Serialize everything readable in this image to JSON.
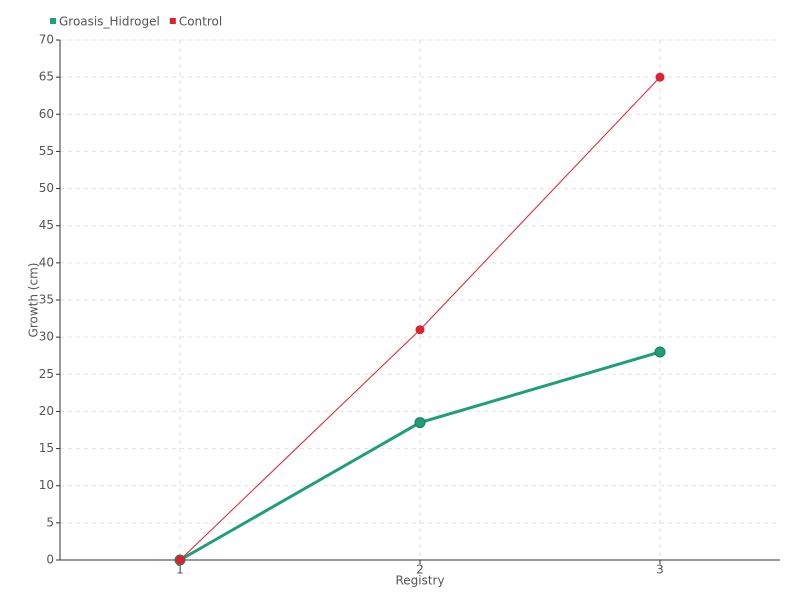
{
  "chart_data": {
    "type": "line",
    "x": [
      1,
      2,
      3
    ],
    "series": [
      {
        "name": "Groasis_Hidrogel",
        "color": "#1f9e7a",
        "values": [
          0,
          18.5,
          28
        ]
      },
      {
        "name": "Control",
        "color": "#e0202e",
        "values": [
          0,
          31,
          65
        ]
      }
    ],
    "xlabel": "Registry",
    "ylabel": "Growth (cm)",
    "xlim": [
      0.5,
      3.5
    ],
    "xticks": [
      1,
      2,
      3
    ],
    "ylim": [
      0,
      70
    ],
    "yticks": [
      0,
      5,
      10,
      15,
      20,
      25,
      30,
      35,
      40,
      45,
      50,
      55,
      60,
      65,
      70
    ],
    "grid": true,
    "legend": "top-left"
  }
}
